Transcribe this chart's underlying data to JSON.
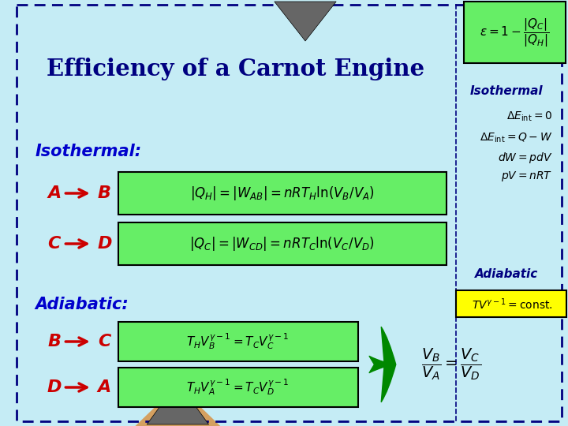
{
  "title": "Efficiency of a Carnot Engine",
  "bg_color": "#C5ECF5",
  "green_box_color": "#66EE66",
  "yellow_box_color": "#FFFF00",
  "border_color": "#000080",
  "title_color": "#000080",
  "label_color": "#0000CC",
  "letter_color": "#CC0000",
  "arrow_color": "#CC0000",
  "green_arrow_color": "#008800",
  "triangle_color": "#666666",
  "orange_color": "#D4A060",
  "right_text_color": "#000080",
  "right_formula_color": "#000000",
  "isothermal_label": "Isothermal",
  "adiabatic_label": "Adiabatic",
  "isothermal_colon": "Isothermal:",
  "adiabatic_colon": "Adiabatic:",
  "figw": 7.2,
  "figh": 5.4,
  "dpi": 100
}
